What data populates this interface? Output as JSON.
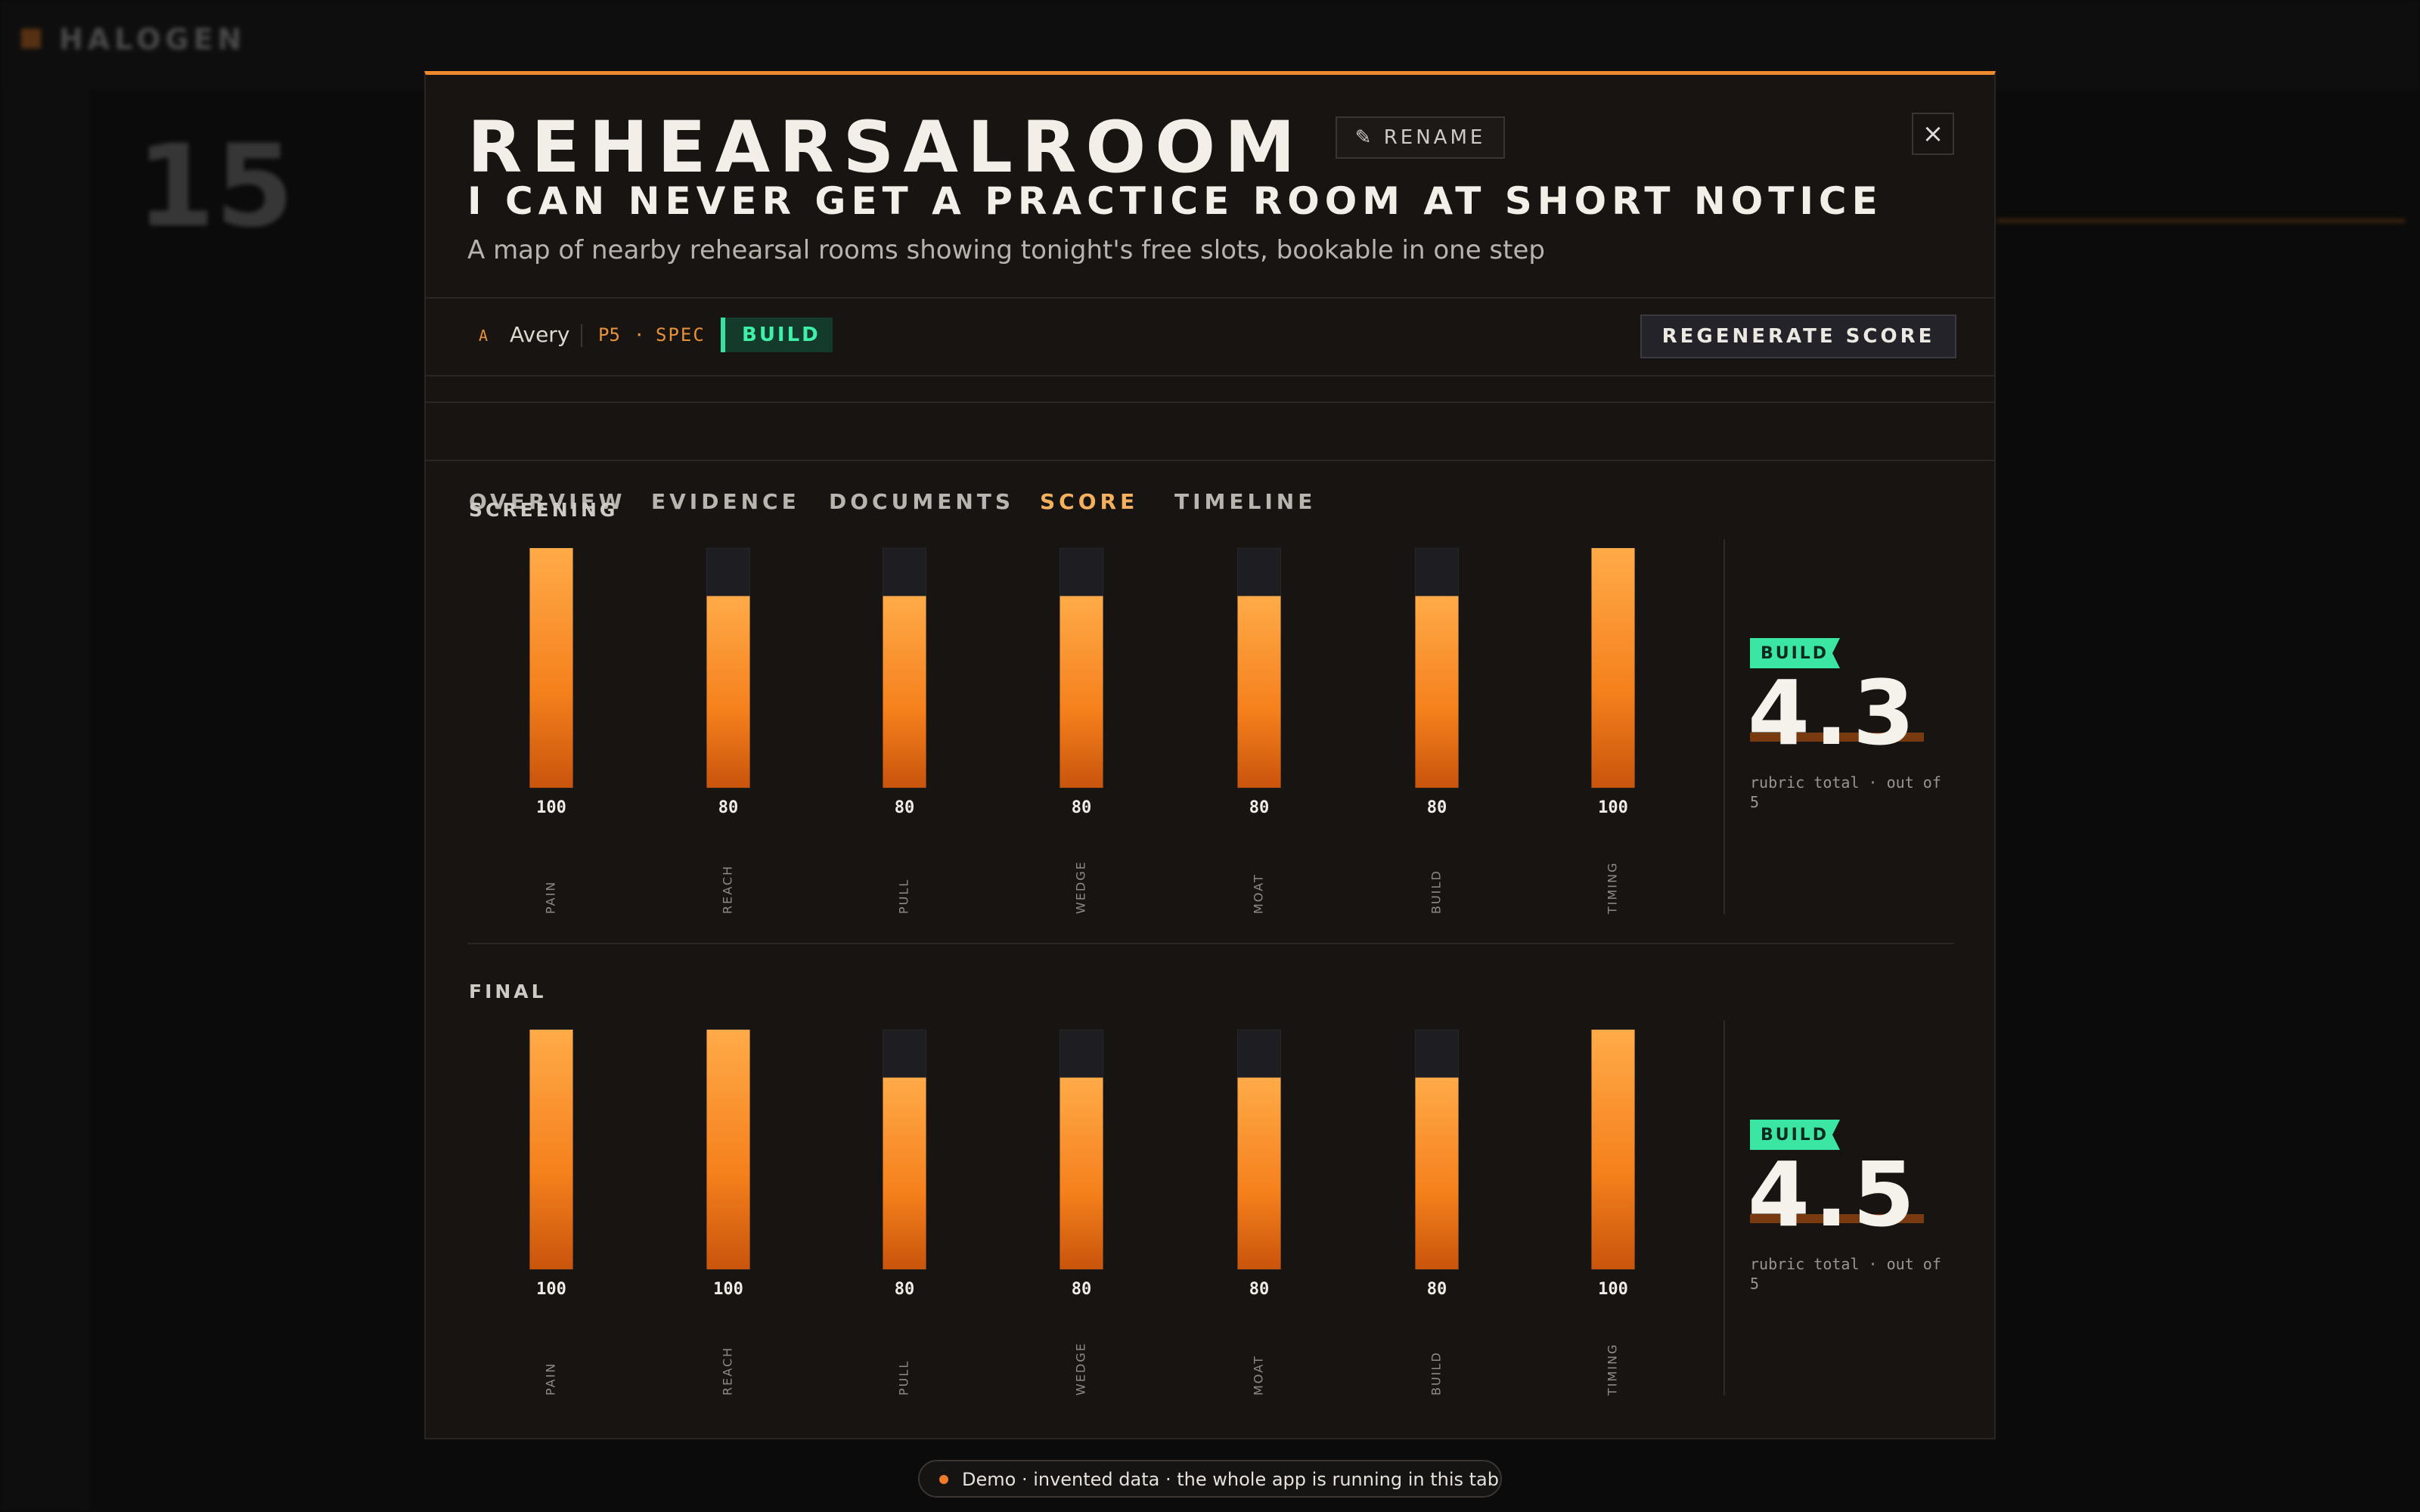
{
  "app": {
    "brand": "HALOGEN",
    "count": "15"
  },
  "modal": {
    "title": "REHEARSALROOM",
    "rename": "✎ RENAME",
    "close": "×",
    "subtitle": "I CAN NEVER GET A PRACTICE ROOM AT SHORT NOTICE",
    "description": "A map of nearby rehearsal rooms showing tonight's free slots, bookable in one step",
    "meta": {
      "initial": "A",
      "owner": "Avery",
      "phase": "P5",
      "dot": "·",
      "stage": "SPEC",
      "badge": "BUILD"
    },
    "regenerate": "REGENERATE SCORE",
    "tabs": [
      "OVERVIEW",
      "EVIDENCE",
      "DOCUMENTS",
      "SCORE",
      "TIMELINE"
    ],
    "active_tab": "SCORE",
    "scores": [
      {
        "type": "bar",
        "label": "SCREENING",
        "categories": [
          "PAIN",
          "REACH",
          "PULL",
          "WEDGE",
          "MOAT",
          "BUILD",
          "TIMING"
        ],
        "values": [
          100,
          80,
          80,
          80,
          80,
          80,
          100
        ],
        "ylim": [
          0,
          100
        ],
        "badge": "BUILD",
        "total": 4.3,
        "total_note": "rubric total · out of 5"
      },
      {
        "type": "bar",
        "label": "FINAL",
        "categories": [
          "PAIN",
          "REACH",
          "PULL",
          "WEDGE",
          "MOAT",
          "BUILD",
          "TIMING"
        ],
        "values": [
          100,
          100,
          80,
          80,
          80,
          80,
          100
        ],
        "ylim": [
          0,
          100
        ],
        "badge": "BUILD",
        "total": 4.5,
        "total_note": "rubric total · out of 5"
      }
    ]
  },
  "footer": {
    "notice": "Demo · invented data · the whole app is running in this tab"
  }
}
